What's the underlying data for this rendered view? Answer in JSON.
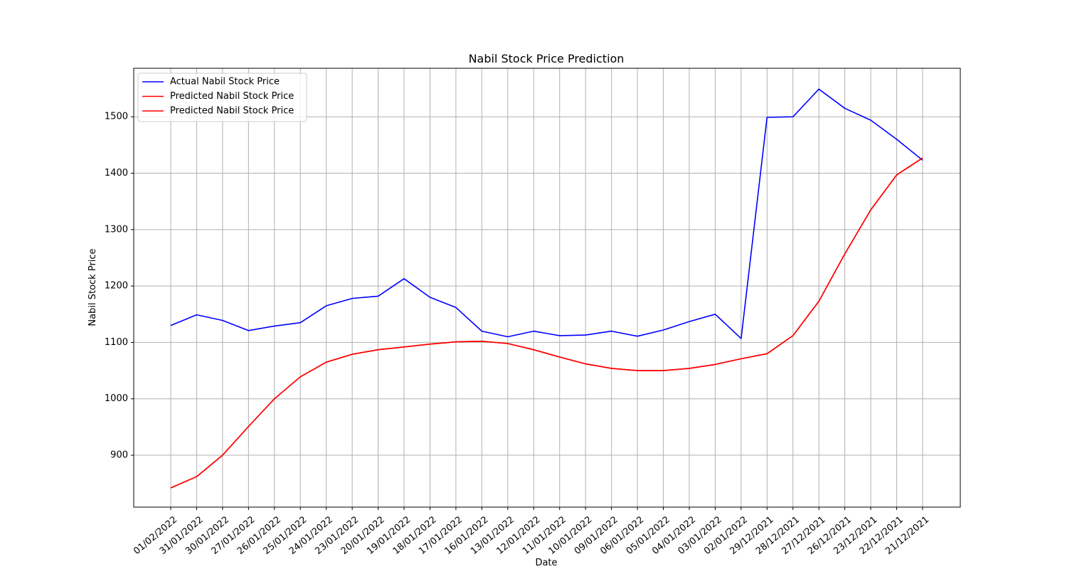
{
  "chart_data": {
    "type": "line",
    "title": "Nabil Stock Price Prediction",
    "xlabel": "Date",
    "ylabel": "Nabil Stock Price",
    "grid": true,
    "legend_position": "upper-left",
    "categories": [
      "01/02/2022",
      "31/01/2022",
      "30/01/2022",
      "27/01/2022",
      "26/01/2022",
      "25/01/2022",
      "24/01/2022",
      "23/01/2022",
      "20/01/2022",
      "19/01/2022",
      "18/01/2022",
      "17/01/2022",
      "16/01/2022",
      "13/01/2022",
      "12/01/2022",
      "11/01/2022",
      "10/01/2022",
      "09/01/2022",
      "06/01/2022",
      "05/01/2022",
      "04/01/2022",
      "03/01/2022",
      "02/01/2022",
      "29/12/2021",
      "28/12/2021",
      "27/12/2021",
      "26/12/2021",
      "23/12/2021",
      "22/12/2021",
      "21/12/2021"
    ],
    "ylim": [
      808,
      1586
    ],
    "yticks": [
      900,
      1000,
      1100,
      1200,
      1300,
      1400,
      1500
    ],
    "series": [
      {
        "name": "Actual Nabil Stock Price",
        "color": "#0000ff",
        "values": [
          1130,
          1149,
          1139,
          1121,
          1129,
          1135,
          1165,
          1178,
          1182,
          1213,
          1180,
          1162,
          1120,
          1110,
          1120,
          1112,
          1113,
          1120,
          1111,
          1122,
          1137,
          1150,
          1107,
          1499,
          1500,
          1549,
          1515,
          1494,
          1460,
          1423
        ]
      },
      {
        "name": "Predicted Nabil Stock Price",
        "color": "#ff0000",
        "values": [
          842,
          862,
          900,
          951,
          1000,
          1039,
          1065,
          1079,
          1087,
          1092,
          1097,
          1101,
          1102,
          1098,
          1087,
          1074,
          1062,
          1054,
          1050,
          1050,
          1054,
          1061,
          1071,
          1080,
          1112,
          1173,
          1257,
          1335,
          1397,
          1427
        ]
      },
      {
        "name": "Predicted Nabil Stock Price",
        "color": "#ff0000",
        "values": [
          842,
          862,
          900,
          951,
          1000,
          1039,
          1065,
          1079,
          1087,
          1092,
          1097,
          1101,
          1102,
          1098,
          1087,
          1074,
          1062,
          1054,
          1050,
          1050,
          1054,
          1061,
          1071,
          1080,
          1112,
          1173,
          1257,
          1335,
          1397,
          1427
        ]
      }
    ]
  }
}
